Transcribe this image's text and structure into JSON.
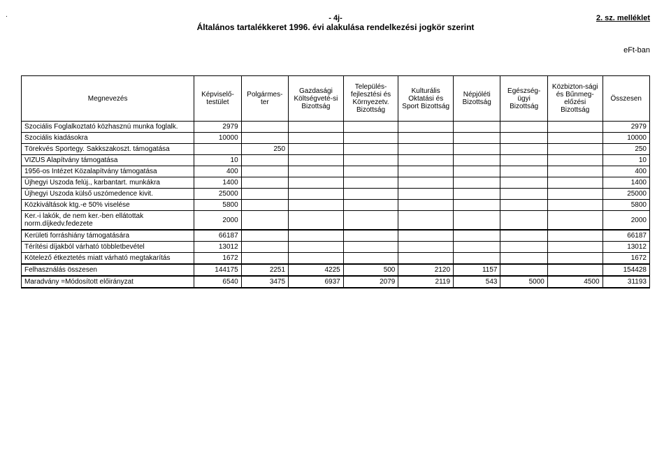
{
  "header": {
    "page_num": "- 4j-",
    "title": "Általános tartalékkeret 1996. évi alakulása rendelkezési jogkör szerint",
    "annex": "2. sz. melléklet",
    "unit": "eFt-ban",
    "dot": "."
  },
  "columns": [
    "Megnevezés",
    "Képviselő-testület",
    "Polgármes-ter",
    "Gazdasági Költségveté-si Bizottság",
    "Település-fejlesztési és Környezetv. Bizottság",
    "Kulturális Oktatási és Sport Bizottság",
    "Népjóléti Bizottság",
    "Egészség-ügyi Bizottság",
    "Közbizton-sági és Bűnmeg-előzési Bizottság",
    "Összesen"
  ],
  "rows": [
    {
      "label": "Szociális Foglalkoztató közhasznú munka foglalk.",
      "c": [
        "2979",
        "",
        "",
        "",
        "",
        "",
        "",
        "",
        "2979"
      ]
    },
    {
      "label": "Szociális kiadásokra",
      "c": [
        "10000",
        "",
        "",
        "",
        "",
        "",
        "",
        "",
        "10000"
      ]
    },
    {
      "label": "Törekvés Sportegy. Sakkszakoszt. támogatása",
      "c": [
        "",
        "250",
        "",
        "",
        "",
        "",
        "",
        "",
        "250"
      ]
    },
    {
      "label": "VIZUS Alapítvány támogatása",
      "c": [
        "10",
        "",
        "",
        "",
        "",
        "",
        "",
        "",
        "10"
      ]
    },
    {
      "label": "1956-os Intézet Közalapítvány támogatása",
      "c": [
        "400",
        "",
        "",
        "",
        "",
        "",
        "",
        "",
        "400"
      ]
    },
    {
      "label": "Újhegyi Uszoda felúj., karbantart. munkákra",
      "c": [
        "1400",
        "",
        "",
        "",
        "",
        "",
        "",
        "",
        "1400"
      ]
    },
    {
      "label": "Újhegyi Uszoda külső uszómedence kivit.",
      "c": [
        "25000",
        "",
        "",
        "",
        "",
        "",
        "",
        "",
        "25000"
      ]
    },
    {
      "label": "Közkiváltások ktg.-e 50% viselése",
      "c": [
        "5800",
        "",
        "",
        "",
        "",
        "",
        "",
        "",
        "5800"
      ]
    },
    {
      "label": "Ker.-i lakók, de nem ker.-ben ellátottak norm.díjkedv.fedezete",
      "c": [
        "2000",
        "",
        "",
        "",
        "",
        "",
        "",
        "",
        "2000"
      ]
    },
    {
      "label": "Kerületi forráshiány támogatására",
      "c": [
        "66187",
        "",
        "",
        "",
        "",
        "",
        "",
        "",
        "66187"
      ],
      "thickTop": true
    },
    {
      "label": "Térítési díjakból várható többletbevétel",
      "c": [
        "13012",
        "",
        "",
        "",
        "",
        "",
        "",
        "",
        "13012"
      ]
    },
    {
      "label": "Kötelező étkeztetés miatt várható megtakarítás",
      "c": [
        "1672",
        "",
        "",
        "",
        "",
        "",
        "",
        "",
        "1672"
      ]
    },
    {
      "label": "Felhasználás összesen",
      "c": [
        "144175",
        "2251",
        "4225",
        "500",
        "2120",
        "1157",
        "",
        "",
        "154428"
      ],
      "thickTop": true
    },
    {
      "label": "Maradvány =Módosított előirányzat",
      "c": [
        "6540",
        "3475",
        "6937",
        "2079",
        "2119",
        "543",
        "5000",
        "4500",
        "31193"
      ],
      "thickTop": true,
      "thickBottom": true
    }
  ],
  "col_widths": [
    "220px",
    "60px",
    "60px",
    "70px",
    "70px",
    "70px",
    "60px",
    "60px",
    "70px",
    "60px"
  ]
}
